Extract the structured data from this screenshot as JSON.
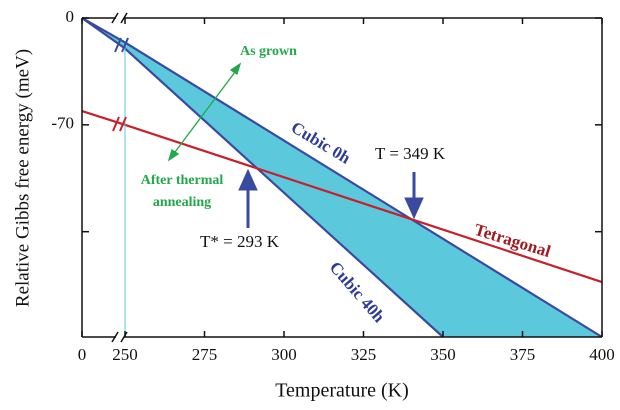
{
  "chart_data": {
    "type": "line",
    "xlabel": "Temperature (K)",
    "ylabel": "Relative Gibbs free energy (meV)",
    "xlim": [
      0,
      400
    ],
    "xticks": [
      0,
      250,
      275,
      300,
      325,
      350,
      375,
      400
    ],
    "x_axis_break": true,
    "ylim": [
      -209,
      0
    ],
    "yticks": [
      0,
      -70
    ],
    "minor_yticks": [
      -140
    ],
    "fill_between_color": "#5bc8dc",
    "series": [
      {
        "name": "Cubic 0h",
        "color": "#3a4aa0",
        "x": [
          0,
          250,
          400
        ],
        "values": [
          0,
          -16,
          -209
        ]
      },
      {
        "name": "Cubic 40h",
        "color": "#3a4aa0",
        "x": [
          0,
          250,
          350
        ],
        "values": [
          0,
          -20,
          -209
        ]
      },
      {
        "name": "Tetragonal",
        "color": "#c8202a",
        "x": [
          0,
          250,
          400
        ],
        "values": [
          -61,
          -70,
          -173
        ]
      }
    ],
    "annotations": {
      "as_grown": "As grown",
      "after_1": "After thermal",
      "after_2": "annealing",
      "t_transition": "T = 349 K",
      "t_star": "T* = 293 K"
    }
  }
}
